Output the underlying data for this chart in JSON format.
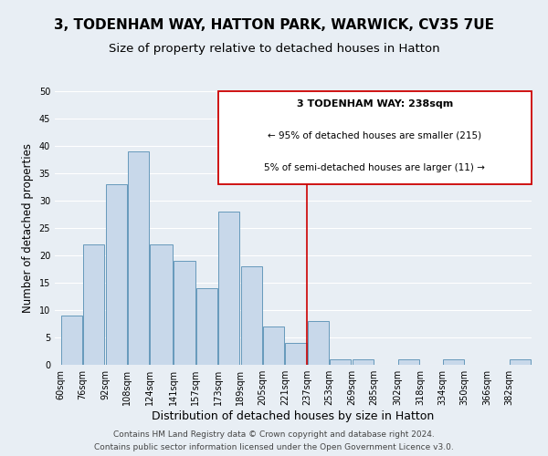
{
  "title1": "3, TODENHAM WAY, HATTON PARK, WARWICK, CV35 7UE",
  "title2": "Size of property relative to detached houses in Hatton",
  "xlabel": "Distribution of detached houses by size in Hatton",
  "ylabel": "Number of detached properties",
  "bin_edges": [
    60,
    76,
    92,
    108,
    124,
    141,
    157,
    173,
    189,
    205,
    221,
    237,
    253,
    269,
    285,
    302,
    318,
    334,
    350,
    366,
    382
  ],
  "bar_heights": [
    9,
    22,
    33,
    39,
    22,
    19,
    14,
    28,
    18,
    7,
    4,
    8,
    1,
    1,
    0,
    1,
    0,
    1,
    0,
    0,
    1
  ],
  "bar_color": "#c8d8ea",
  "bar_edgecolor": "#6699bb",
  "grid_color": "#c8d8ea",
  "vline_x": 237,
  "vline_color": "#cc0000",
  "annotation_title": "3 TODENHAM WAY: 238sqm",
  "annotation_line1": "← 95% of detached houses are smaller (215)",
  "annotation_line2": "5% of semi-detached houses are larger (11) →",
  "annotation_box_edgecolor": "#cc0000",
  "ylim": [
    0,
    50
  ],
  "yticks": [
    0,
    5,
    10,
    15,
    20,
    25,
    30,
    35,
    40,
    45,
    50
  ],
  "footer1": "Contains HM Land Registry data © Crown copyright and database right 2024.",
  "footer2": "Contains public sector information licensed under the Open Government Licence v3.0.",
  "bg_color": "#e8eef4",
  "plot_bg_color": "#e8eef4",
  "title1_fontsize": 11,
  "title2_fontsize": 9.5,
  "xlabel_fontsize": 9,
  "ylabel_fontsize": 8.5,
  "tick_fontsize": 7,
  "footer_fontsize": 6.5
}
